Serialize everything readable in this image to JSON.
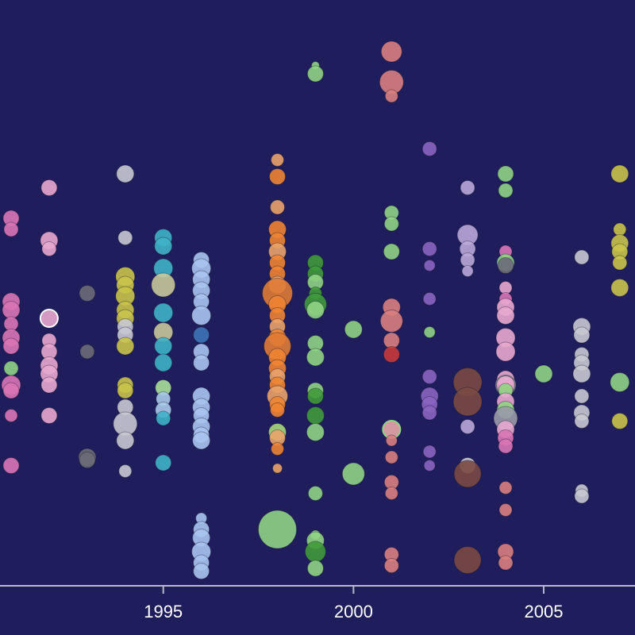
{
  "chart_data": {
    "type": "scatter",
    "title": "",
    "xlabel": "",
    "ylabel": "",
    "xlim": [
      1991,
      2007.4
    ],
    "ylim": [
      0,
      100
    ],
    "grid": false,
    "legend": "none",
    "background": "#1f1d5b",
    "axis_color": "#b8b8c8",
    "x_ticks": [
      {
        "value": 1995,
        "label": "1995"
      },
      {
        "value": 2000,
        "label": "2000"
      },
      {
        "value": 2005,
        "label": "2005"
      }
    ],
    "points": [
      {
        "x": 1991,
        "y": 65,
        "s": 10,
        "c": "#d976b5"
      },
      {
        "x": 1991,
        "y": 63,
        "s": 9,
        "c": "#d976b5"
      },
      {
        "x": 1991,
        "y": 50,
        "s": 11,
        "c": "#d976b5"
      },
      {
        "x": 1991,
        "y": 48.5,
        "s": 11,
        "c": "#d976b5"
      },
      {
        "x": 1991,
        "y": 46,
        "s": 9,
        "c": "#d976b5"
      },
      {
        "x": 1991,
        "y": 43.5,
        "s": 11,
        "c": "#d976b5"
      },
      {
        "x": 1991,
        "y": 42,
        "s": 10,
        "c": "#d976b5"
      },
      {
        "x": 1991,
        "y": 38,
        "s": 9,
        "c": "#8fd484"
      },
      {
        "x": 1991,
        "y": 35,
        "s": 12,
        "c": "#d976b5"
      },
      {
        "x": 1991,
        "y": 34,
        "s": 10,
        "c": "#d976b5"
      },
      {
        "x": 1991,
        "y": 29.5,
        "s": 8,
        "c": "#d976b5"
      },
      {
        "x": 1991,
        "y": 20.5,
        "s": 10,
        "c": "#d976b5"
      },
      {
        "x": 1992,
        "y": 70.5,
        "s": 10,
        "c": "#e8a9cf"
      },
      {
        "x": 1992,
        "y": 61,
        "s": 11,
        "c": "#e8a9cf"
      },
      {
        "x": 1992,
        "y": 59.5,
        "s": 9,
        "c": "#e8a9cf"
      },
      {
        "x": 1992,
        "y": 47,
        "s": 11,
        "c": "#e8a9cf",
        "stroke": "#ffffff"
      },
      {
        "x": 1992,
        "y": 43,
        "s": 9,
        "c": "#e8a9cf"
      },
      {
        "x": 1992,
        "y": 41,
        "s": 10,
        "c": "#e8a9cf"
      },
      {
        "x": 1992,
        "y": 38.5,
        "s": 11,
        "c": "#e8a9cf"
      },
      {
        "x": 1992,
        "y": 37,
        "s": 11,
        "c": "#e8a9cf"
      },
      {
        "x": 1992,
        "y": 35,
        "s": 10,
        "c": "#e8a9cf"
      },
      {
        "x": 1992,
        "y": 29.5,
        "s": 10,
        "c": "#e8a9cf"
      },
      {
        "x": 1993,
        "y": 51.5,
        "s": 10,
        "c": "#6b6b78"
      },
      {
        "x": 1993,
        "y": 41,
        "s": 9,
        "c": "#6b6b78"
      },
      {
        "x": 1993,
        "y": 22,
        "s": 11,
        "c": "#6b6b78"
      },
      {
        "x": 1993,
        "y": 21.5,
        "s": 10,
        "c": "#6b6b78"
      },
      {
        "x": 1994,
        "y": 73,
        "s": 11,
        "c": "#c8c8d2"
      },
      {
        "x": 1994,
        "y": 61.5,
        "s": 9,
        "c": "#c8c8d2"
      },
      {
        "x": 1994,
        "y": 54.5,
        "s": 12,
        "c": "#c9c34a"
      },
      {
        "x": 1994,
        "y": 53,
        "s": 11,
        "c": "#c9c34a"
      },
      {
        "x": 1994,
        "y": 51,
        "s": 12,
        "c": "#c9c34a"
      },
      {
        "x": 1994,
        "y": 48.5,
        "s": 11,
        "c": "#c9c34a"
      },
      {
        "x": 1994,
        "y": 47,
        "s": 11,
        "c": "#c9c34a"
      },
      {
        "x": 1994,
        "y": 45.5,
        "s": 10,
        "c": "#c8c8d2"
      },
      {
        "x": 1994,
        "y": 44,
        "s": 10,
        "c": "#c8c8d2"
      },
      {
        "x": 1994,
        "y": 42,
        "s": 11,
        "c": "#c9c34a"
      },
      {
        "x": 1994,
        "y": 35,
        "s": 10,
        "c": "#c9c34a"
      },
      {
        "x": 1994,
        "y": 34,
        "s": 10,
        "c": "#c9c34a"
      },
      {
        "x": 1994,
        "y": 31,
        "s": 10,
        "c": "#c8c8d2"
      },
      {
        "x": 1994,
        "y": 28,
        "s": 15,
        "c": "#c8c8d2"
      },
      {
        "x": 1994,
        "y": 25,
        "s": 11,
        "c": "#c8c8d2"
      },
      {
        "x": 1994,
        "y": 19.5,
        "s": 8,
        "c": "#c8c8d2"
      },
      {
        "x": 1995,
        "y": 61.5,
        "s": 11,
        "c": "#3fb3c8"
      },
      {
        "x": 1995,
        "y": 60,
        "s": 11,
        "c": "#3fb3c8"
      },
      {
        "x": 1995,
        "y": 56,
        "s": 12,
        "c": "#3fb3c8"
      },
      {
        "x": 1995,
        "y": 53,
        "s": 15,
        "c": "#c8c89a"
      },
      {
        "x": 1995,
        "y": 48,
        "s": 12,
        "c": "#3fb3c8"
      },
      {
        "x": 1995,
        "y": 44.5,
        "s": 12,
        "c": "#c8c89a"
      },
      {
        "x": 1995,
        "y": 42,
        "s": 11,
        "c": "#3fb3c8"
      },
      {
        "x": 1995,
        "y": 39,
        "s": 11,
        "c": "#3fb3c8"
      },
      {
        "x": 1995,
        "y": 34.5,
        "s": 10,
        "c": "#a7e09a"
      },
      {
        "x": 1995,
        "y": 32.5,
        "s": 9,
        "c": "#a8c9e8"
      },
      {
        "x": 1995,
        "y": 30.5,
        "s": 10,
        "c": "#a8c9e8"
      },
      {
        "x": 1995,
        "y": 29,
        "s": 9,
        "c": "#3fb3c8"
      },
      {
        "x": 1995,
        "y": 21,
        "s": 10,
        "c": "#3fb3c8"
      },
      {
        "x": 1996,
        "y": 57.5,
        "s": 10,
        "c": "#a8c4ee"
      },
      {
        "x": 1996,
        "y": 56,
        "s": 12,
        "c": "#a8c4ee"
      },
      {
        "x": 1996,
        "y": 54,
        "s": 11,
        "c": "#a8c4ee"
      },
      {
        "x": 1996,
        "y": 52,
        "s": 11,
        "c": "#a8c4ee"
      },
      {
        "x": 1996,
        "y": 50,
        "s": 10,
        "c": "#a8c4ee"
      },
      {
        "x": 1996,
        "y": 47.5,
        "s": 12,
        "c": "#a8c4ee"
      },
      {
        "x": 1996,
        "y": 44,
        "s": 10,
        "c": "#3d74b8"
      },
      {
        "x": 1996,
        "y": 41,
        "s": 10,
        "c": "#a8c4ee"
      },
      {
        "x": 1996,
        "y": 39,
        "s": 10,
        "c": "#a8c4ee"
      },
      {
        "x": 1996,
        "y": 33,
        "s": 11,
        "c": "#a8c4ee"
      },
      {
        "x": 1996,
        "y": 31,
        "s": 11,
        "c": "#a8c4ee"
      },
      {
        "x": 1996,
        "y": 29.5,
        "s": 10,
        "c": "#a8c4ee"
      },
      {
        "x": 1996,
        "y": 27.5,
        "s": 11,
        "c": "#a8c4ee"
      },
      {
        "x": 1996,
        "y": 26,
        "s": 10,
        "c": "#a8c4ee"
      },
      {
        "x": 1996,
        "y": 25,
        "s": 11,
        "c": "#a8c4ee"
      },
      {
        "x": 1996,
        "y": 11,
        "s": 7,
        "c": "#a8c4ee"
      },
      {
        "x": 1996,
        "y": 9,
        "s": 10,
        "c": "#a8c4ee"
      },
      {
        "x": 1996,
        "y": 7.5,
        "s": 11,
        "c": "#a8c4ee"
      },
      {
        "x": 1996,
        "y": 5,
        "s": 12,
        "c": "#a8c4ee"
      },
      {
        "x": 1996,
        "y": 3,
        "s": 10,
        "c": "#a8c4ee"
      },
      {
        "x": 1996,
        "y": 1.5,
        "s": 10,
        "c": "#a8c4ee"
      },
      {
        "x": 1998,
        "y": 75.5,
        "s": 8,
        "c": "#e9a36a"
      },
      {
        "x": 1998,
        "y": 72.5,
        "s": 10,
        "c": "#ee8433"
      },
      {
        "x": 1998,
        "y": 67,
        "s": 9,
        "c": "#e9a36a"
      },
      {
        "x": 1998,
        "y": 63,
        "s": 11,
        "c": "#ee8433"
      },
      {
        "x": 1998,
        "y": 61,
        "s": 10,
        "c": "#ee8433"
      },
      {
        "x": 1998,
        "y": 59,
        "s": 11,
        "c": "#e9a36a"
      },
      {
        "x": 1998,
        "y": 57,
        "s": 10,
        "c": "#ee8433"
      },
      {
        "x": 1998,
        "y": 55,
        "s": 10,
        "c": "#ee8433"
      },
      {
        "x": 1998,
        "y": 53,
        "s": 11,
        "c": "#e9a36a"
      },
      {
        "x": 1998,
        "y": 51.5,
        "s": 19,
        "c": "#e07b36"
      },
      {
        "x": 1998,
        "y": 49.5,
        "s": 11,
        "c": "#ee8433"
      },
      {
        "x": 1998,
        "y": 47.5,
        "s": 10,
        "c": "#ee8433"
      },
      {
        "x": 1998,
        "y": 45.5,
        "s": 10,
        "c": "#e9a36a"
      },
      {
        "x": 1998,
        "y": 43.5,
        "s": 11,
        "c": "#ee8433"
      },
      {
        "x": 1998,
        "y": 42,
        "s": 17,
        "c": "#e07b36"
      },
      {
        "x": 1998,
        "y": 40,
        "s": 11,
        "c": "#ee8433"
      },
      {
        "x": 1998,
        "y": 38,
        "s": 11,
        "c": "#ee8433"
      },
      {
        "x": 1998,
        "y": 36.5,
        "s": 10,
        "c": "#e9a36a"
      },
      {
        "x": 1998,
        "y": 35,
        "s": 10,
        "c": "#ee8433"
      },
      {
        "x": 1998,
        "y": 33,
        "s": 13,
        "c": "#e9a36a"
      },
      {
        "x": 1998,
        "y": 31.5,
        "s": 10,
        "c": "#ee8433"
      },
      {
        "x": 1998,
        "y": 30.5,
        "s": 9,
        "c": "#ee8433"
      },
      {
        "x": 1998,
        "y": 26.5,
        "s": 11,
        "c": "#a7d97a"
      },
      {
        "x": 1998,
        "y": 25.5,
        "s": 10,
        "c": "#e9a36a"
      },
      {
        "x": 1998,
        "y": 23.5,
        "s": 8,
        "c": "#ee8433"
      },
      {
        "x": 1998,
        "y": 20,
        "s": 6,
        "c": "#e9a36a"
      },
      {
        "x": 1998,
        "y": 9,
        "s": 24,
        "c": "#8fd484"
      },
      {
        "x": 1999,
        "y": 92.5,
        "s": 5,
        "c": "#8fd484"
      },
      {
        "x": 1999,
        "y": 91,
        "s": 10,
        "c": "#8fd484"
      },
      {
        "x": 1999,
        "y": 57,
        "s": 10,
        "c": "#3f9a3a"
      },
      {
        "x": 1999,
        "y": 55,
        "s": 10,
        "c": "#3f9a3a"
      },
      {
        "x": 1999,
        "y": 53.5,
        "s": 10,
        "c": "#8fd484"
      },
      {
        "x": 1999,
        "y": 51.5,
        "s": 8,
        "c": "#3f9a3a"
      },
      {
        "x": 1999,
        "y": 49.5,
        "s": 14,
        "c": "#3f9a3a"
      },
      {
        "x": 1999,
        "y": 48.5,
        "s": 11,
        "c": "#8fd484"
      },
      {
        "x": 1999,
        "y": 42.5,
        "s": 10,
        "c": "#8fd484"
      },
      {
        "x": 1999,
        "y": 40,
        "s": 11,
        "c": "#8fd484"
      },
      {
        "x": 1999,
        "y": 34,
        "s": 10,
        "c": "#8fd484"
      },
      {
        "x": 1999,
        "y": 33,
        "s": 10,
        "c": "#3f9a3a"
      },
      {
        "x": 1999,
        "y": 29.5,
        "s": 11,
        "c": "#3f9a3a"
      },
      {
        "x": 1999,
        "y": 26.5,
        "s": 11,
        "c": "#8fd484"
      },
      {
        "x": 1999,
        "y": 15.5,
        "s": 9,
        "c": "#8fd484"
      },
      {
        "x": 1999,
        "y": 8,
        "s": 6,
        "c": "#8fd484"
      },
      {
        "x": 1999,
        "y": 7,
        "s": 11,
        "c": "#8fd484"
      },
      {
        "x": 1999,
        "y": 5,
        "s": 13,
        "c": "#3f9a3a"
      },
      {
        "x": 1999,
        "y": 2,
        "s": 10,
        "c": "#8fd484"
      },
      {
        "x": 2000,
        "y": 45,
        "s": 11,
        "c": "#8fd484"
      },
      {
        "x": 2000,
        "y": 19,
        "s": 14,
        "c": "#8fd484"
      },
      {
        "x": 2001,
        "y": 95,
        "s": 13,
        "c": "#d98080"
      },
      {
        "x": 2001,
        "y": 89.5,
        "s": 15,
        "c": "#d98080"
      },
      {
        "x": 2001,
        "y": 87,
        "s": 8,
        "c": "#d98080"
      },
      {
        "x": 2001,
        "y": 66,
        "s": 9,
        "c": "#8fd484"
      },
      {
        "x": 2001,
        "y": 64,
        "s": 9,
        "c": "#8fd484"
      },
      {
        "x": 2001,
        "y": 59,
        "s": 10,
        "c": "#8fd484"
      },
      {
        "x": 2001,
        "y": 49,
        "s": 11,
        "c": "#d98080"
      },
      {
        "x": 2001,
        "y": 46.5,
        "s": 14,
        "c": "#d98080"
      },
      {
        "x": 2001,
        "y": 43,
        "s": 10,
        "c": "#d98080"
      },
      {
        "x": 2001,
        "y": 40.5,
        "s": 10,
        "c": "#c83a3a"
      },
      {
        "x": 2001,
        "y": 27,
        "s": 11,
        "c": "#e8a9a9",
        "stroke": "#8fd484"
      },
      {
        "x": 2001,
        "y": 25,
        "s": 7,
        "c": "#d98080"
      },
      {
        "x": 2001,
        "y": 22,
        "s": 8,
        "c": "#d98080"
      },
      {
        "x": 2001,
        "y": 17.5,
        "s": 9,
        "c": "#d98080"
      },
      {
        "x": 2001,
        "y": 15.5,
        "s": 8,
        "c": "#d98080"
      },
      {
        "x": 2001,
        "y": 4.5,
        "s": 9,
        "c": "#d98080"
      },
      {
        "x": 2001,
        "y": 2.5,
        "s": 9,
        "c": "#d98080"
      },
      {
        "x": 2002,
        "y": 77.5,
        "s": 9,
        "c": "#8a64c0"
      },
      {
        "x": 2002,
        "y": 59.5,
        "s": 9,
        "c": "#8a64c0"
      },
      {
        "x": 2002,
        "y": 56.5,
        "s": 7,
        "c": "#8a64c0"
      },
      {
        "x": 2002,
        "y": 50.5,
        "s": 8,
        "c": "#8a64c0"
      },
      {
        "x": 2002,
        "y": 44.5,
        "s": 7,
        "c": "#8fd484"
      },
      {
        "x": 2002,
        "y": 36.5,
        "s": 9,
        "c": "#8a64c0"
      },
      {
        "x": 2002,
        "y": 33,
        "s": 11,
        "c": "#8a64c0"
      },
      {
        "x": 2002,
        "y": 31.5,
        "s": 10,
        "c": "#8a64c0"
      },
      {
        "x": 2002,
        "y": 30,
        "s": 9,
        "c": "#8a64c0"
      },
      {
        "x": 2002,
        "y": 23,
        "s": 8,
        "c": "#8a64c0"
      },
      {
        "x": 2002,
        "y": 20.5,
        "s": 7,
        "c": "#8a64c0"
      },
      {
        "x": 2003,
        "y": 70.5,
        "s": 9,
        "c": "#b9a8d8"
      },
      {
        "x": 2003,
        "y": 62,
        "s": 13,
        "c": "#b9a8d8"
      },
      {
        "x": 2003,
        "y": 59.5,
        "s": 10,
        "c": "#b9a8d8"
      },
      {
        "x": 2003,
        "y": 57.5,
        "s": 9,
        "c": "#b9a8d8"
      },
      {
        "x": 2003,
        "y": 55.5,
        "s": 7,
        "c": "#b9a8d8"
      },
      {
        "x": 2003,
        "y": 35.5,
        "s": 18,
        "c": "#7a4a42"
      },
      {
        "x": 2003,
        "y": 32,
        "s": 18,
        "c": "#7a4a42"
      },
      {
        "x": 2003,
        "y": 27.5,
        "s": 9,
        "c": "#b9a8d8"
      },
      {
        "x": 2003,
        "y": 20.5,
        "s": 10,
        "c": "#c8c8d2"
      },
      {
        "x": 2003,
        "y": 19,
        "s": 17,
        "c": "#7a4a42"
      },
      {
        "x": 2003,
        "y": 3.5,
        "s": 17,
        "c": "#7a4a42"
      },
      {
        "x": 2004,
        "y": 73,
        "s": 10,
        "c": "#8fd484"
      },
      {
        "x": 2004,
        "y": 70,
        "s": 9,
        "c": "#8fd484"
      },
      {
        "x": 2004,
        "y": 59,
        "s": 8,
        "c": "#d976b5"
      },
      {
        "x": 2004,
        "y": 57,
        "s": 11,
        "c": "#8fd484"
      },
      {
        "x": 2004,
        "y": 56.5,
        "s": 10,
        "c": "#6b6b78"
      },
      {
        "x": 2004,
        "y": 52.5,
        "s": 8,
        "c": "#e8a9cf"
      },
      {
        "x": 2004,
        "y": 50.5,
        "s": 8,
        "c": "#d976b5"
      },
      {
        "x": 2004,
        "y": 49,
        "s": 11,
        "c": "#e8a9cf"
      },
      {
        "x": 2004,
        "y": 47.5,
        "s": 11,
        "c": "#e8a9cf"
      },
      {
        "x": 2004,
        "y": 43.5,
        "s": 12,
        "c": "#e8a9cf"
      },
      {
        "x": 2004,
        "y": 41,
        "s": 12,
        "c": "#e8a9cf"
      },
      {
        "x": 2004,
        "y": 36,
        "s": 11,
        "c": "#e8a9cf"
      },
      {
        "x": 2004,
        "y": 35,
        "s": 12,
        "c": "#e8a9cf",
        "stroke": "#6b6b78"
      },
      {
        "x": 2004,
        "y": 34,
        "s": 9,
        "c": "#8fd484"
      },
      {
        "x": 2004,
        "y": 32,
        "s": 11,
        "c": "#e8a9cf"
      },
      {
        "x": 2004,
        "y": 30.5,
        "s": 11,
        "c": "#8fd484"
      },
      {
        "x": 2004,
        "y": 29,
        "s": 15,
        "c": "#9a9aa8"
      },
      {
        "x": 2004,
        "y": 27,
        "s": 11,
        "c": "#e8a9cf"
      },
      {
        "x": 2004,
        "y": 25.5,
        "s": 10,
        "c": "#d976b5"
      },
      {
        "x": 2004,
        "y": 24,
        "s": 9,
        "c": "#d976b5"
      },
      {
        "x": 2004,
        "y": 16.5,
        "s": 8,
        "c": "#d98080"
      },
      {
        "x": 2004,
        "y": 12.5,
        "s": 8,
        "c": "#d98080"
      },
      {
        "x": 2004,
        "y": 5,
        "s": 10,
        "c": "#d98080"
      },
      {
        "x": 2004,
        "y": 3,
        "s": 9,
        "c": "#d98080"
      },
      {
        "x": 2005,
        "y": 37,
        "s": 11,
        "c": "#8fd484"
      },
      {
        "x": 2006,
        "y": 58,
        "s": 9,
        "c": "#c8c8d2"
      },
      {
        "x": 2006,
        "y": 45.5,
        "s": 11,
        "c": "#c8c8d2"
      },
      {
        "x": 2006,
        "y": 44,
        "s": 10,
        "c": "#c8c8d2"
      },
      {
        "x": 2006,
        "y": 40.5,
        "s": 9,
        "c": "#c8c8d2"
      },
      {
        "x": 2006,
        "y": 39,
        "s": 10,
        "c": "#c8c8d2"
      },
      {
        "x": 2006,
        "y": 37,
        "s": 11,
        "c": "#c8c8d2"
      },
      {
        "x": 2006,
        "y": 33,
        "s": 9,
        "c": "#c8c8d2"
      },
      {
        "x": 2006,
        "y": 30,
        "s": 10,
        "c": "#c8c8d2"
      },
      {
        "x": 2006,
        "y": 28.5,
        "s": 9,
        "c": "#c8c8d2"
      },
      {
        "x": 2006,
        "y": 16,
        "s": 8,
        "c": "#c8c8d2"
      },
      {
        "x": 2006,
        "y": 15,
        "s": 9,
        "c": "#c8c8d2"
      },
      {
        "x": 2007,
        "y": 73,
        "s": 11,
        "c": "#c9c34a"
      },
      {
        "x": 2007,
        "y": 63,
        "s": 8,
        "c": "#c9c34a"
      },
      {
        "x": 2007,
        "y": 60.5,
        "s": 11,
        "c": "#c9c34a"
      },
      {
        "x": 2007,
        "y": 59,
        "s": 10,
        "c": "#c9c34a"
      },
      {
        "x": 2007,
        "y": 57,
        "s": 9,
        "c": "#c9c34a"
      },
      {
        "x": 2007,
        "y": 52.5,
        "s": 11,
        "c": "#c9c34a"
      },
      {
        "x": 2007,
        "y": 35.5,
        "s": 12,
        "c": "#8fd484"
      },
      {
        "x": 2007,
        "y": 28.5,
        "s": 10,
        "c": "#c9c34a"
      }
    ]
  }
}
